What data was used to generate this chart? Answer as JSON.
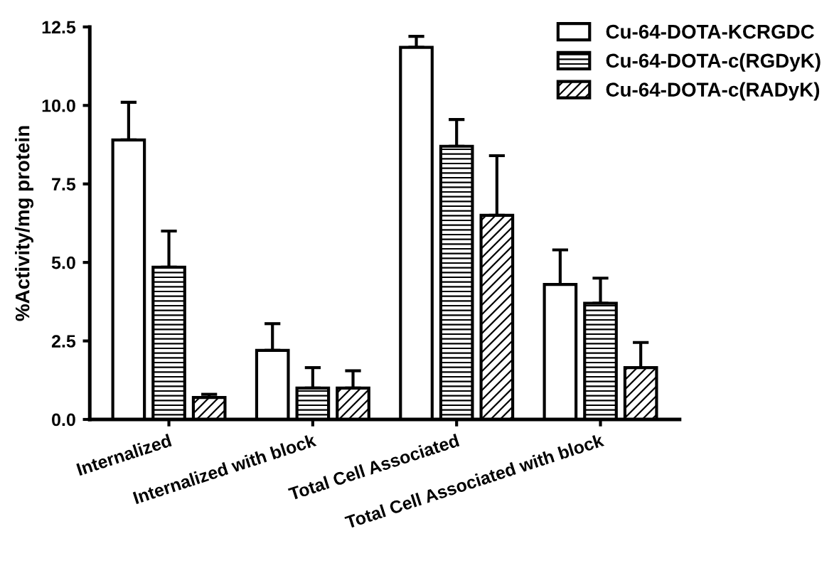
{
  "chart_data": {
    "type": "bar",
    "ylabel": "%Activity/mg protein",
    "categories": [
      "Internalized",
      "Internalized with block",
      "Total Cell Associated",
      "Total Cell Associated with block"
    ],
    "series": [
      {
        "name": "Cu-64-DOTA-KCRGDC",
        "color": "#ffffff",
        "values": [
          8.9,
          2.2,
          11.85,
          4.3
        ],
        "errors": [
          [
            8.9,
            10.1
          ],
          [
            2.2,
            3.05
          ],
          [
            11.85,
            12.2
          ],
          [
            4.3,
            5.4
          ]
        ]
      },
      {
        "name": "Cu-64-DOTA-c(RGDyK)",
        "color": "#000000",
        "values": [
          4.85,
          1.0,
          8.7,
          3.7
        ],
        "errors": [
          [
            4.85,
            6.0
          ],
          [
            1.0,
            1.65
          ],
          [
            8.7,
            9.55
          ],
          [
            3.7,
            4.5
          ]
        ]
      },
      {
        "name": "Cu-64-DOTA-c(RADyK)",
        "color": "#000000",
        "values": [
          0.7,
          1.0,
          6.5,
          1.65
        ],
        "errors": [
          [
            0.7,
            0.8
          ],
          [
            1.0,
            1.55
          ],
          [
            6.5,
            8.4
          ],
          [
            1.65,
            2.45
          ]
        ]
      }
    ],
    "ylim": [
      0,
      12.5
    ],
    "yticks": [
      {
        "value": 0,
        "label": "0.0"
      },
      {
        "value": 2.5,
        "label": "2.5"
      },
      {
        "value": 5,
        "label": "5.0"
      },
      {
        "value": 7.5,
        "label": "7.5"
      },
      {
        "value": 10,
        "label": "10.0"
      },
      {
        "value": 12.5,
        "label": "12.5"
      }
    ],
    "grid": false,
    "legend": "top right"
  }
}
